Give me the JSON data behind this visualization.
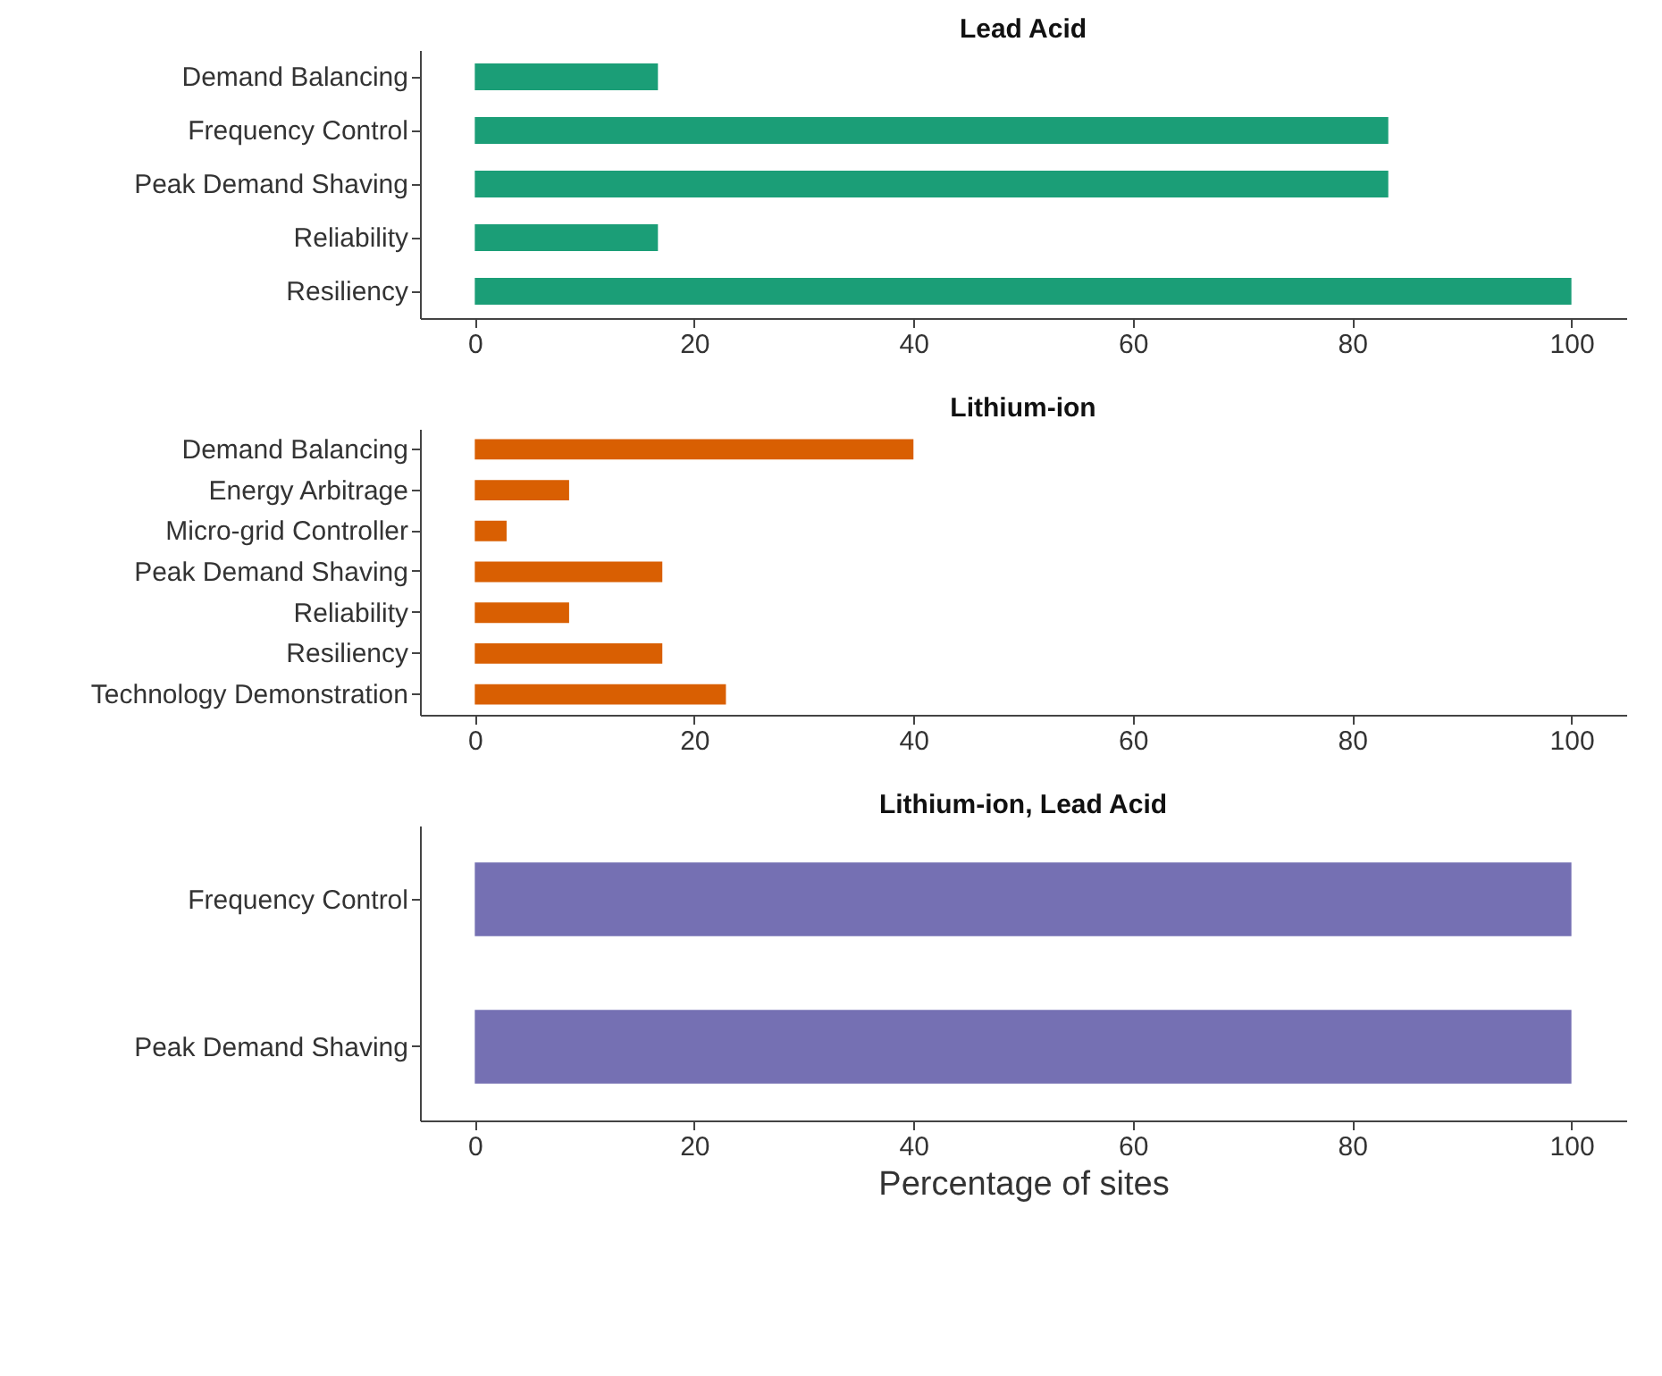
{
  "chart_data": [
    {
      "type": "bar",
      "orientation": "horizontal",
      "title": "Lead Acid",
      "categories": [
        "Demand Balancing",
        "Frequency Control",
        "Peak Demand Shaving",
        "Reliability",
        "Resiliency"
      ],
      "series": [
        {
          "color": "#1b9e77",
          "values": [
            16.7,
            83.3,
            83.3,
            16.7,
            100
          ]
        }
      ],
      "xlim": [
        -5,
        105
      ],
      "xticks": [
        0,
        20,
        40,
        60,
        80,
        100
      ],
      "grid": false,
      "legend": false
    },
    {
      "type": "bar",
      "orientation": "horizontal",
      "title": "Lithium-ion",
      "categories": [
        "Demand Balancing",
        "Energy Arbitrage",
        "Micro-grid Controller",
        "Peak Demand Shaving",
        "Reliability",
        "Resiliency",
        "Technology Demonstration"
      ],
      "series": [
        {
          "color": "#d95f02",
          "values": [
            40,
            8.6,
            2.9,
            17.1,
            8.6,
            17.1,
            22.9
          ]
        }
      ],
      "xlim": [
        -5,
        105
      ],
      "xticks": [
        0,
        20,
        40,
        60,
        80,
        100
      ],
      "grid": false,
      "legend": false
    },
    {
      "type": "bar",
      "orientation": "horizontal",
      "title": "Lithium-ion, Lead Acid",
      "xlabel": "Percentage of sites",
      "categories": [
        "Frequency Control",
        "Peak Demand Shaving"
      ],
      "series": [
        {
          "color": "#7570b3",
          "values": [
            100,
            100
          ]
        }
      ],
      "xlim": [
        -5,
        105
      ],
      "xticks": [
        0,
        20,
        40,
        60,
        80,
        100
      ],
      "grid": false,
      "legend": false
    }
  ]
}
